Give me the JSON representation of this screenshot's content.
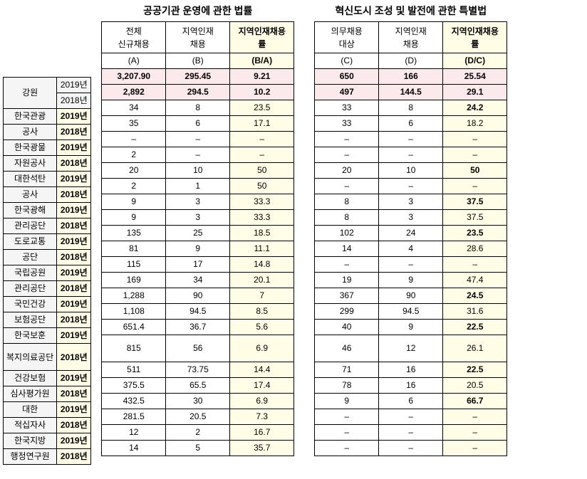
{
  "titles": {
    "mid": "공공기관 운영에 관한  법률",
    "right": "혁신도시 조성 및 발전에 관한 특별법"
  },
  "headers": {
    "mid": {
      "a_top": "전체",
      "a_mid": "신규채용",
      "a_bot": "(A)",
      "b_top": "지역인재",
      "b_mid": "채용",
      "b_bot": "(B)",
      "c_top": "지역인재채용",
      "c_mid": "률",
      "c_bot": "(B/A)"
    },
    "right": {
      "a_top": "의무채용",
      "a_mid": "대상",
      "a_bot": "(C)",
      "b_top": "지역인재",
      "b_mid": "채용",
      "b_bot": "(D)",
      "c_top": "지역인재채용",
      "c_mid": "률",
      "c_bot": "(D/C)"
    }
  },
  "region": "강원",
  "sum_years": [
    "2019년",
    "2018년"
  ],
  "mid_sums": [
    [
      "3,207.90",
      "295.45",
      "9.21"
    ],
    [
      "2,892",
      "294.5",
      "10.2"
    ]
  ],
  "right_sums": [
    [
      "650",
      "166",
      "25.54"
    ],
    [
      "497",
      "144.5",
      "29.1"
    ]
  ],
  "orgs": [
    "한국관광",
    "공사",
    "한국광물",
    "자원공사",
    "대한석탄",
    "공사",
    "한국광해",
    "관리공단",
    "도로교통",
    "공단",
    "국립공원",
    "관리공단",
    "국민건강",
    "보험공단",
    "한국보훈",
    "복지의료공단",
    "건강보험",
    "심사평가원",
    "대한",
    "적십자사",
    "한국지방",
    "행정연구원"
  ],
  "years": [
    "2019년",
    "2018년",
    "2019년",
    "2018년",
    "2019년",
    "2018년",
    "2019년",
    "2018년",
    "2019년",
    "2018년",
    "2019년",
    "2018년",
    "2019년",
    "2018년",
    "2019년",
    "2018년",
    "2019년",
    "2018년",
    "2019년",
    "2018년",
    "2019년",
    "2018년"
  ],
  "mid_rows": [
    [
      "34",
      "8",
      "23.5"
    ],
    [
      "35",
      "6",
      "17.1"
    ],
    [
      "–",
      "–",
      "–"
    ],
    [
      "2",
      "–",
      "–"
    ],
    [
      "20",
      "10",
      "50"
    ],
    [
      "2",
      "1",
      "50"
    ],
    [
      "9",
      "3",
      "33.3"
    ],
    [
      "9",
      "3",
      "33.3"
    ],
    [
      "135",
      "25",
      "18.5"
    ],
    [
      "81",
      "9",
      "11.1"
    ],
    [
      "115",
      "17",
      "14.8"
    ],
    [
      "169",
      "34",
      "20.1"
    ],
    [
      "1,288",
      "90",
      "7"
    ],
    [
      "1,108",
      "94.5",
      "8.5"
    ],
    [
      "651.4",
      "36.7",
      "5.6"
    ],
    [
      "815",
      "56",
      "6.9"
    ],
    [
      "511",
      "73.75",
      "14.4"
    ],
    [
      "375.5",
      "65.5",
      "17.4"
    ],
    [
      "432.5",
      "30",
      "6.9"
    ],
    [
      "281.5",
      "20.5",
      "7.3"
    ],
    [
      "12",
      "2",
      "16.7"
    ],
    [
      "14",
      "5",
      "35.7"
    ]
  ],
  "right_rows": [
    [
      "33",
      "8",
      "24.2"
    ],
    [
      "33",
      "6",
      "18.2"
    ],
    [
      "–",
      "–",
      "–"
    ],
    [
      "–",
      "–",
      "–"
    ],
    [
      "20",
      "10",
      "50"
    ],
    [
      "–",
      "–",
      "–"
    ],
    [
      "8",
      "3",
      "37.5"
    ],
    [
      "8",
      "3",
      "37.5"
    ],
    [
      "102",
      "24",
      "23.5"
    ],
    [
      "14",
      "4",
      "28.6"
    ],
    [
      "–",
      "–",
      "–"
    ],
    [
      "19",
      "9",
      "47.4"
    ],
    [
      "367",
      "90",
      "24.5"
    ],
    [
      "299",
      "94.5",
      "31.6"
    ],
    [
      "40",
      "9",
      "22.5"
    ],
    [
      "46",
      "12",
      "26.1"
    ],
    [
      "71",
      "16",
      "22.5"
    ],
    [
      "78",
      "16",
      "20.5"
    ],
    [
      "9",
      "6",
      "66.7"
    ],
    [
      "–",
      "–",
      "–"
    ],
    [
      "–",
      "–",
      "–"
    ],
    [
      "–",
      "–",
      "–"
    ]
  ],
  "tall_rows": [
    15
  ],
  "bold_right_c_rows": [
    0,
    4,
    6,
    8,
    12,
    14,
    16,
    18
  ]
}
